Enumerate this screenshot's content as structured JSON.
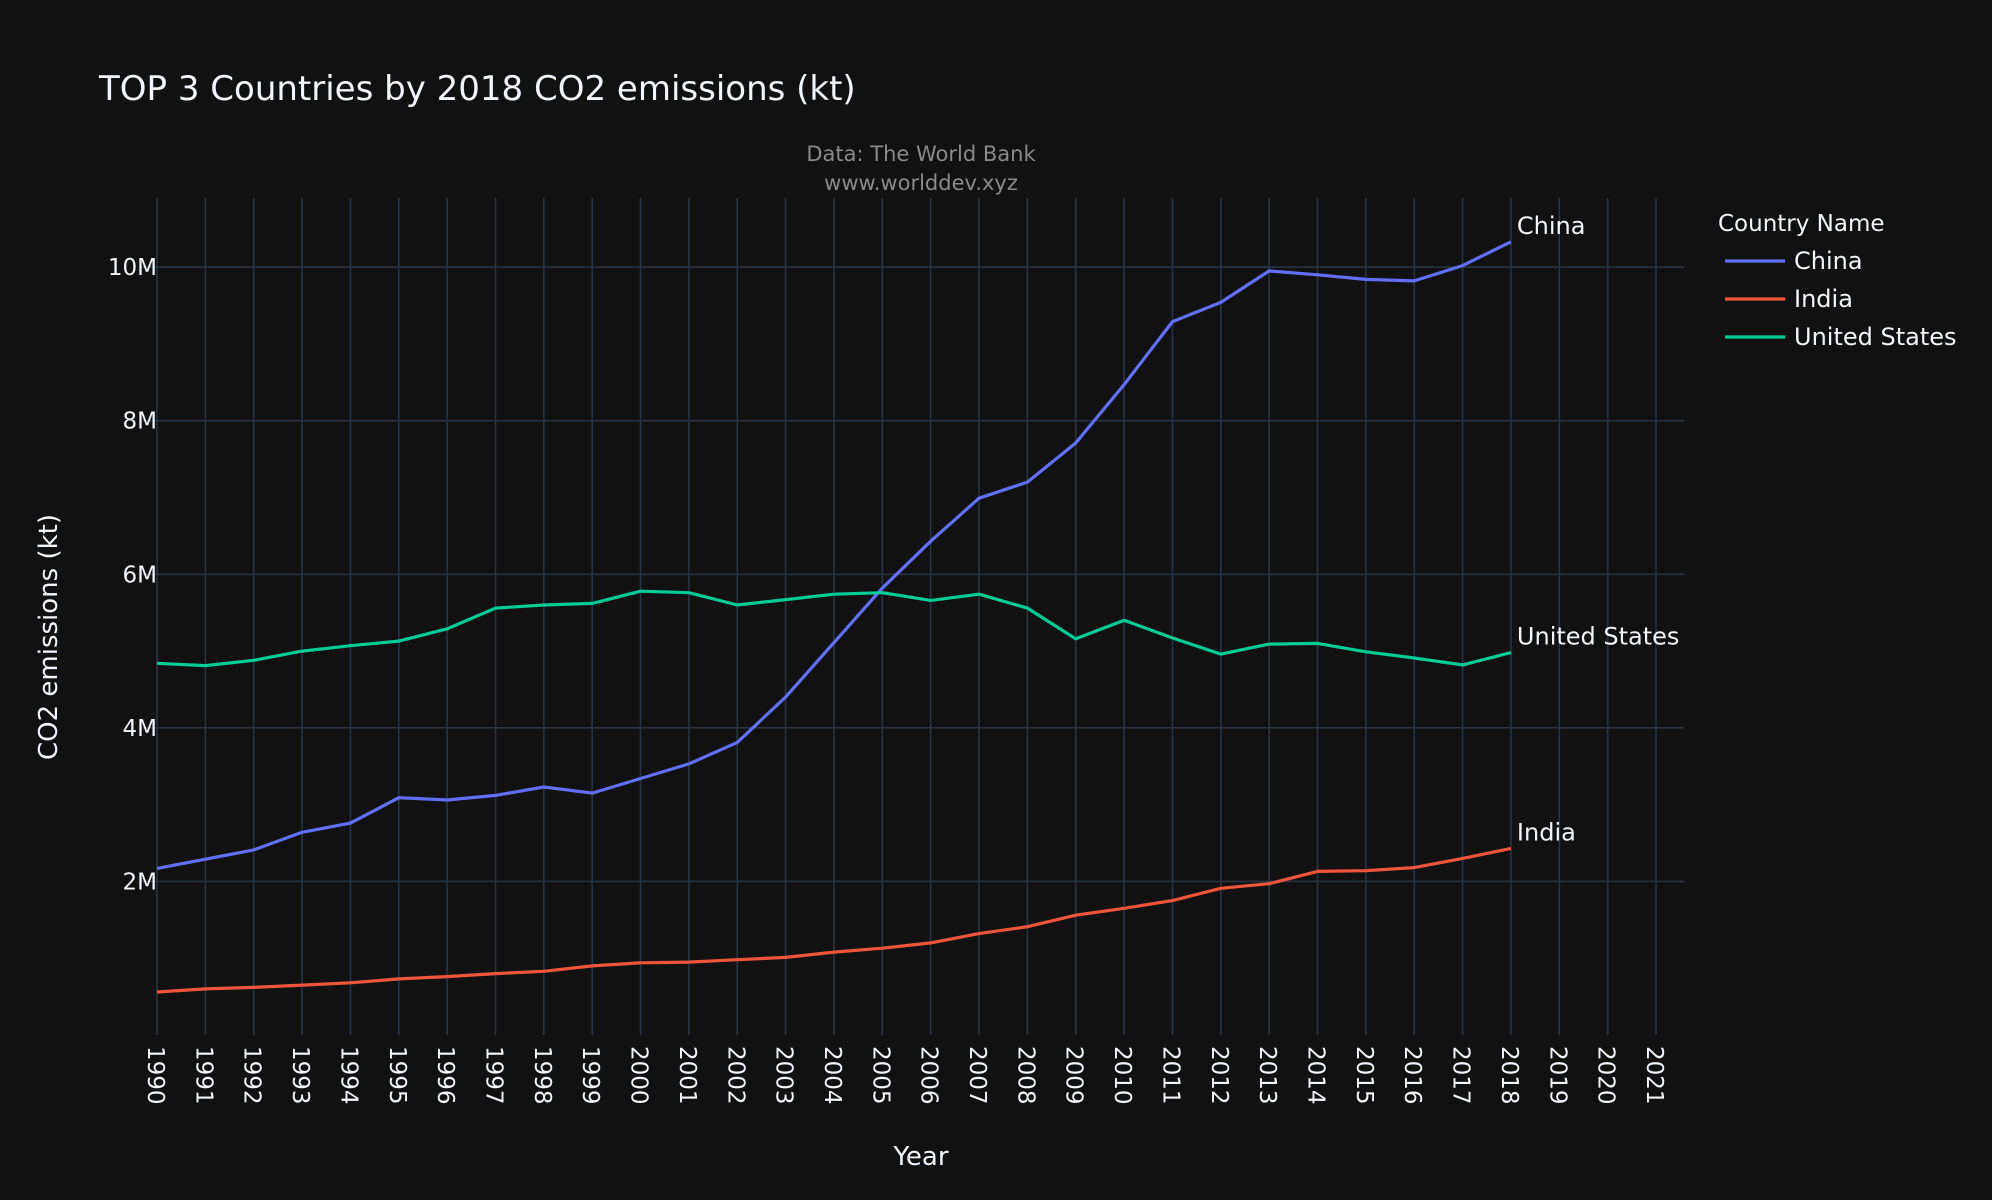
{
  "chart_data": {
    "type": "line",
    "title": "TOP 3 Countries by 2018 CO2 emissions (kt)",
    "subtitle_lines": [
      "Data: The World Bank",
      "www.worlddev.xyz"
    ],
    "xlabel": "Year",
    "ylabel": "CO2 emissions (kt)",
    "x_ticks": [
      "1990",
      "1991",
      "1992",
      "1993",
      "1994",
      "1995",
      "1996",
      "1997",
      "1998",
      "1999",
      "2000",
      "2001",
      "2002",
      "2003",
      "2004",
      "2005",
      "2006",
      "2007",
      "2008",
      "2009",
      "2010",
      "2011",
      "2012",
      "2013",
      "2014",
      "2015",
      "2016",
      "2017",
      "2018",
      "2019",
      "2020",
      "2021"
    ],
    "xlim": [
      1990,
      2021
    ],
    "ylim": [
      0,
      10900000
    ],
    "y_ticks": [
      {
        "value": 2000000,
        "label": "2M"
      },
      {
        "value": 4000000,
        "label": "4M"
      },
      {
        "value": 6000000,
        "label": "6M"
      },
      {
        "value": 8000000,
        "label": "8M"
      },
      {
        "value": 10000000,
        "label": "10M"
      }
    ],
    "grid": true,
    "legend": {
      "title": "Country Name",
      "position": "top-right"
    },
    "x": [
      1990,
      1991,
      1992,
      1993,
      1994,
      1995,
      1996,
      1997,
      1998,
      1999,
      2000,
      2001,
      2002,
      2003,
      2004,
      2005,
      2006,
      2007,
      2008,
      2009,
      2010,
      2011,
      2012,
      2013,
      2014,
      2015,
      2016,
      2017,
      2018
    ],
    "series": [
      {
        "name": "China",
        "color": "#636efa",
        "end_label": "China",
        "values": [
          2170000,
          2290000,
          2410000,
          2640000,
          2760000,
          3090000,
          3060000,
          3120000,
          3230000,
          3150000,
          3340000,
          3530000,
          3810000,
          4400000,
          5110000,
          5820000,
          6430000,
          6990000,
          7200000,
          7710000,
          8470000,
          9290000,
          9540000,
          9950000,
          9900000,
          9840000,
          9820000,
          10020000,
          10330000
        ]
      },
      {
        "name": "India",
        "color": "#ef553b",
        "end_label": "India",
        "values": [
          560000,
          600000,
          620000,
          650000,
          680000,
          730000,
          760000,
          800000,
          830000,
          900000,
          940000,
          950000,
          980000,
          1010000,
          1080000,
          1130000,
          1200000,
          1320000,
          1410000,
          1560000,
          1650000,
          1750000,
          1910000,
          1970000,
          2130000,
          2140000,
          2180000,
          2300000,
          2430000
        ]
      },
      {
        "name": "United States",
        "color": "#00cc96",
        "end_label": "United States",
        "values": [
          4840000,
          4810000,
          4880000,
          5000000,
          5070000,
          5130000,
          5290000,
          5560000,
          5600000,
          5620000,
          5780000,
          5760000,
          5600000,
          5670000,
          5740000,
          5760000,
          5660000,
          5740000,
          5560000,
          5160000,
          5400000,
          5170000,
          4960000,
          5090000,
          5100000,
          4990000,
          4910000,
          4820000,
          4980000
        ]
      }
    ]
  }
}
